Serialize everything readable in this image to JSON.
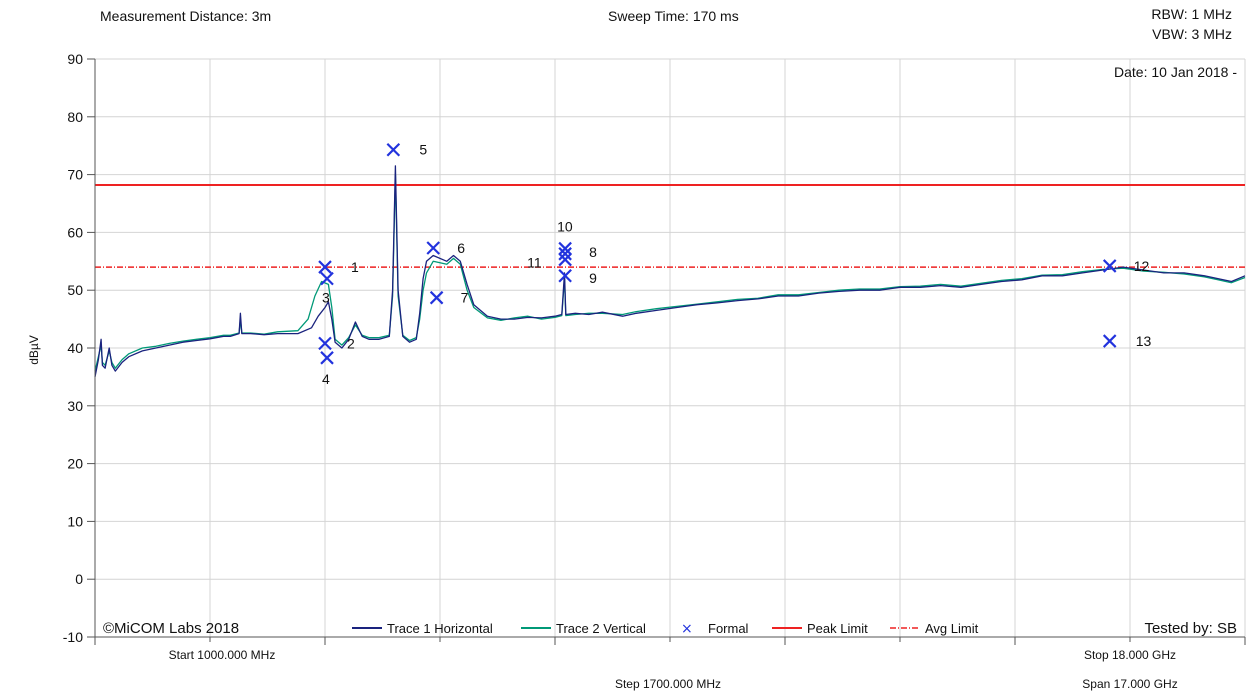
{
  "header": {
    "measurement_distance": "Measurement Distance: 3m",
    "sweep_time": "Sweep Time: 170 ms",
    "rbw": "RBW: 1 MHz",
    "vbw": "VBW: 3 MHz",
    "date": "Date: 10 Jan 2018 -"
  },
  "footer": {
    "copyright": "©MiCOM Labs 2018",
    "tested_by": "Tested by: SB",
    "start": "Start 1000.000 MHz",
    "step": "Step 1700.000 MHz",
    "stop": "Stop 18.000 GHz",
    "span": "Span 17.000 GHz"
  },
  "colors": {
    "trace1": "#1a237e",
    "trace2": "#009977",
    "marker": "#2233dd",
    "peak_limit": "#ee2222",
    "avg_limit": "#ee2222",
    "grid": "#d4d4d4"
  },
  "chart_data": {
    "type": "line",
    "xlim": [
      1000,
      18000
    ],
    "xunit": "MHz",
    "ylabel": "dBµV",
    "ylim": [
      -10,
      90
    ],
    "yticks": [
      -10,
      0,
      10,
      20,
      30,
      40,
      50,
      60,
      70,
      80,
      90
    ],
    "grid": true,
    "legend_position": "bottom",
    "legend": [
      {
        "label": "Trace 1 Horizontal",
        "kind": "line",
        "color": "#1a237e"
      },
      {
        "label": "Trace 2 Vertical",
        "kind": "line",
        "color": "#009977"
      },
      {
        "label": "Formal",
        "kind": "marker",
        "color": "#2233dd"
      },
      {
        "label": "Peak Limit",
        "kind": "line",
        "color": "#ee2222"
      },
      {
        "label": "Avg Limit",
        "kind": "dashdot",
        "color": "#ee2222"
      }
    ],
    "limits": [
      {
        "name": "Peak Limit",
        "value": 68.2
      },
      {
        "name": "Avg Limit",
        "value": 54.0
      }
    ],
    "series": [
      {
        "name": "Trace 1 Horizontal",
        "points": [
          [
            1000,
            35
          ],
          [
            1050,
            38
          ],
          [
            1090,
            41.5
          ],
          [
            1110,
            37
          ],
          [
            1150,
            36.5
          ],
          [
            1210,
            40
          ],
          [
            1250,
            37
          ],
          [
            1300,
            36
          ],
          [
            1400,
            37.5
          ],
          [
            1500,
            38.5
          ],
          [
            1700,
            39.5
          ],
          [
            1900,
            40
          ],
          [
            2100,
            40.5
          ],
          [
            2300,
            41
          ],
          [
            2500,
            41.3
          ],
          [
            2700,
            41.6
          ],
          [
            2900,
            42
          ],
          [
            3000,
            42
          ],
          [
            3130,
            42.5
          ],
          [
            3150,
            46
          ],
          [
            3170,
            42.5
          ],
          [
            3300,
            42.5
          ],
          [
            3500,
            42.3
          ],
          [
            3700,
            42.5
          ],
          [
            4000,
            42.5
          ],
          [
            4200,
            43.5
          ],
          [
            4300,
            45.5
          ],
          [
            4400,
            47
          ],
          [
            4450,
            48
          ],
          [
            4500,
            45
          ],
          [
            4550,
            41
          ],
          [
            4650,
            40
          ],
          [
            4750,
            41.5
          ],
          [
            4850,
            44.5
          ],
          [
            4950,
            42
          ],
          [
            5050,
            41.5
          ],
          [
            5200,
            41.5
          ],
          [
            5350,
            42
          ],
          [
            5400,
            50
          ],
          [
            5440,
            71.5
          ],
          [
            5480,
            50
          ],
          [
            5550,
            42
          ],
          [
            5650,
            41
          ],
          [
            5750,
            41.5
          ],
          [
            5800,
            46
          ],
          [
            5850,
            52
          ],
          [
            5900,
            55
          ],
          [
            6000,
            56
          ],
          [
            6200,
            55
          ],
          [
            6300,
            56
          ],
          [
            6400,
            55
          ],
          [
            6500,
            51
          ],
          [
            6600,
            47.5
          ],
          [
            6800,
            45.5
          ],
          [
            7000,
            45
          ],
          [
            7200,
            45
          ],
          [
            7400,
            45.3
          ],
          [
            7600,
            45.2
          ],
          [
            7800,
            45.5
          ],
          [
            7900,
            45.8
          ],
          [
            7940,
            53
          ],
          [
            7960,
            45.8
          ],
          [
            8100,
            46
          ],
          [
            8300,
            45.8
          ],
          [
            8500,
            46.2
          ],
          [
            8800,
            45.5
          ],
          [
            9000,
            46
          ],
          [
            9300,
            46.5
          ],
          [
            9600,
            47
          ],
          [
            9900,
            47.5
          ],
          [
            10200,
            47.8
          ],
          [
            10500,
            48.2
          ],
          [
            10800,
            48.5
          ],
          [
            11100,
            49
          ],
          [
            11400,
            49
          ],
          [
            11700,
            49.5
          ],
          [
            12000,
            49.8
          ],
          [
            12300,
            50
          ],
          [
            12600,
            50
          ],
          [
            12900,
            50.5
          ],
          [
            13200,
            50.5
          ],
          [
            13500,
            50.8
          ],
          [
            13800,
            50.5
          ],
          [
            14100,
            51
          ],
          [
            14400,
            51.5
          ],
          [
            14700,
            51.8
          ],
          [
            15000,
            52.5
          ],
          [
            15300,
            52.5
          ],
          [
            15600,
            53
          ],
          [
            15900,
            53.5
          ],
          [
            16200,
            54
          ],
          [
            16500,
            53.5
          ],
          [
            16800,
            53
          ],
          [
            17100,
            53
          ],
          [
            17400,
            52.5
          ],
          [
            17600,
            52
          ],
          [
            17800,
            51.5
          ],
          [
            18000,
            52.5
          ]
        ]
      },
      {
        "name": "Trace 2 Vertical",
        "points": [
          [
            1000,
            36
          ],
          [
            1050,
            38.5
          ],
          [
            1090,
            40.5
          ],
          [
            1110,
            37.5
          ],
          [
            1150,
            37
          ],
          [
            1210,
            39.5
          ],
          [
            1250,
            37.5
          ],
          [
            1300,
            36.5
          ],
          [
            1400,
            38
          ],
          [
            1500,
            39
          ],
          [
            1700,
            40
          ],
          [
            1900,
            40.3
          ],
          [
            2100,
            40.8
          ],
          [
            2300,
            41.2
          ],
          [
            2500,
            41.5
          ],
          [
            2700,
            41.8
          ],
          [
            2900,
            42.2
          ],
          [
            3000,
            42.2
          ],
          [
            3130,
            42.6
          ],
          [
            3150,
            45
          ],
          [
            3170,
            42.6
          ],
          [
            3300,
            42.6
          ],
          [
            3500,
            42.4
          ],
          [
            3700,
            42.8
          ],
          [
            4000,
            43
          ],
          [
            4150,
            45
          ],
          [
            4250,
            49
          ],
          [
            4350,
            51.5
          ],
          [
            4450,
            51
          ],
          [
            4500,
            47
          ],
          [
            4550,
            41.5
          ],
          [
            4650,
            40.5
          ],
          [
            4750,
            41.8
          ],
          [
            4850,
            44
          ],
          [
            4950,
            42.2
          ],
          [
            5050,
            41.8
          ],
          [
            5200,
            41.8
          ],
          [
            5350,
            42.2
          ],
          [
            5400,
            49
          ],
          [
            5440,
            70
          ],
          [
            5480,
            49
          ],
          [
            5550,
            42.2
          ],
          [
            5650,
            41.3
          ],
          [
            5750,
            41.8
          ],
          [
            5800,
            45
          ],
          [
            5850,
            50
          ],
          [
            5900,
            53
          ],
          [
            6000,
            55
          ],
          [
            6200,
            54.5
          ],
          [
            6300,
            55.5
          ],
          [
            6400,
            54.5
          ],
          [
            6500,
            50
          ],
          [
            6600,
            47
          ],
          [
            6800,
            45.2
          ],
          [
            7000,
            44.8
          ],
          [
            7200,
            45.2
          ],
          [
            7400,
            45.5
          ],
          [
            7600,
            45
          ],
          [
            7800,
            45.3
          ],
          [
            7900,
            45.6
          ],
          [
            7940,
            52
          ],
          [
            7960,
            45.6
          ],
          [
            8100,
            45.8
          ],
          [
            8300,
            46
          ],
          [
            8500,
            46
          ],
          [
            8800,
            45.8
          ],
          [
            9000,
            46.3
          ],
          [
            9300,
            46.8
          ],
          [
            9600,
            47.2
          ],
          [
            9900,
            47.6
          ],
          [
            10200,
            48
          ],
          [
            10500,
            48.4
          ],
          [
            10800,
            48.6
          ],
          [
            11100,
            49.2
          ],
          [
            11400,
            49.2
          ],
          [
            11700,
            49.6
          ],
          [
            12000,
            50
          ],
          [
            12300,
            50.2
          ],
          [
            12600,
            50.2
          ],
          [
            12900,
            50.6
          ],
          [
            13200,
            50.7
          ],
          [
            13500,
            51
          ],
          [
            13800,
            50.7
          ],
          [
            14100,
            51.2
          ],
          [
            14400,
            51.7
          ],
          [
            14700,
            52
          ],
          [
            15000,
            52.6
          ],
          [
            15300,
            52.7
          ],
          [
            15600,
            53.2
          ],
          [
            15900,
            53.6
          ],
          [
            16200,
            53.8
          ],
          [
            16500,
            53.3
          ],
          [
            16800,
            53.1
          ],
          [
            17100,
            52.8
          ],
          [
            17400,
            52.3
          ],
          [
            17600,
            51.8
          ],
          [
            17800,
            51.3
          ],
          [
            18000,
            52.2
          ]
        ]
      }
    ],
    "markers": [
      {
        "label": "1",
        "x": 4400,
        "y": 54
      },
      {
        "label": "2",
        "x": 4400,
        "y": 40.8
      },
      {
        "label": "3",
        "x": 4430,
        "y": 52
      },
      {
        "label": "4",
        "x": 4430,
        "y": 38.3
      },
      {
        "label": "5",
        "x": 5410,
        "y": 74.3
      },
      {
        "label": "6",
        "x": 6000,
        "y": 57.3
      },
      {
        "label": "7",
        "x": 6050,
        "y": 48.7
      },
      {
        "label": "8",
        "x": 7950,
        "y": 56.3
      },
      {
        "label": "9",
        "x": 7950,
        "y": 52.5
      },
      {
        "label": "10",
        "x": 7950,
        "y": 57.2
      },
      {
        "label": "11",
        "x": 7950,
        "y": 55.3
      },
      {
        "label": "12",
        "x": 16000,
        "y": 54.2
      },
      {
        "label": "13",
        "x": 16000,
        "y": 41.2
      }
    ]
  }
}
